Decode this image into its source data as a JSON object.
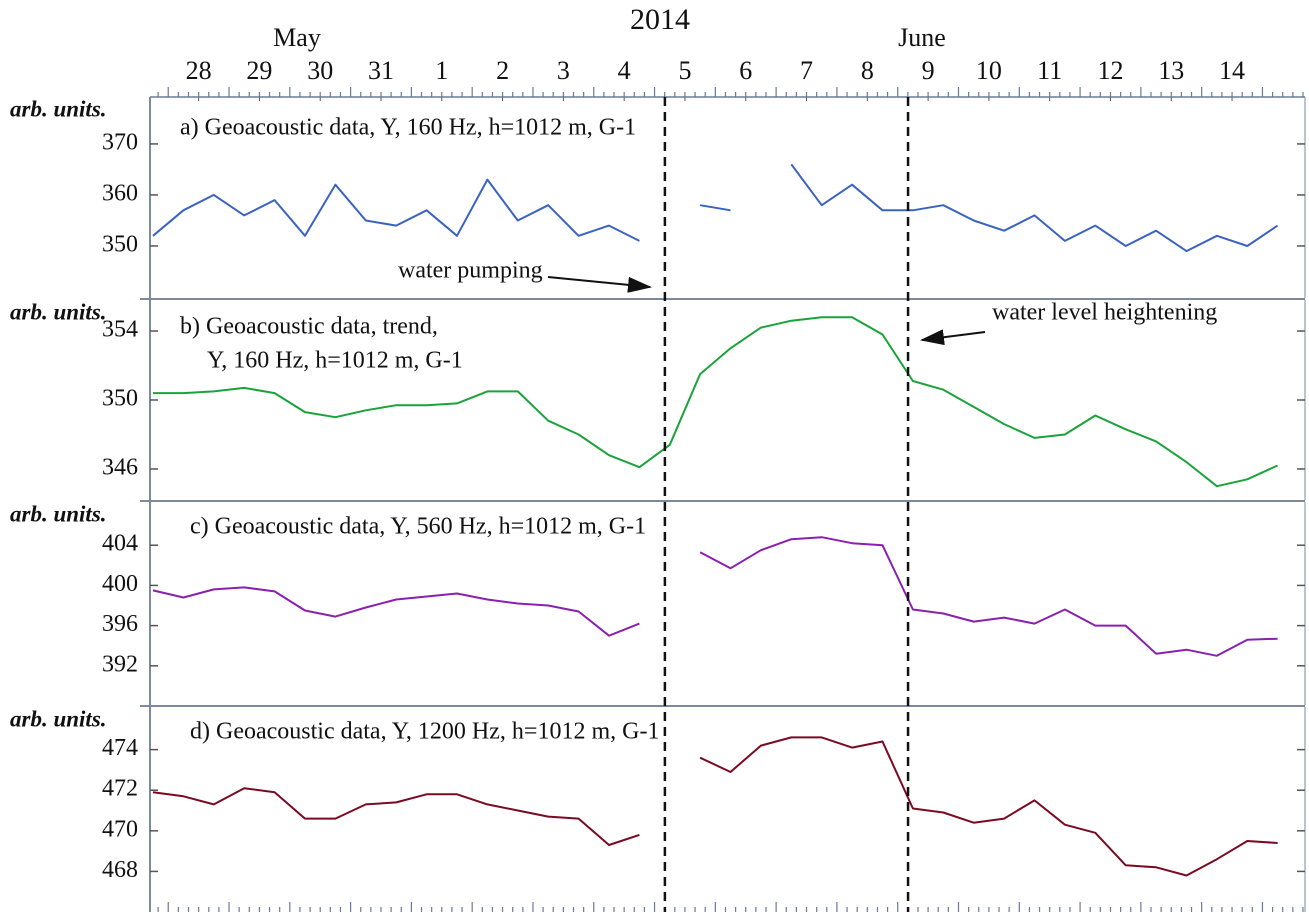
{
  "header": {
    "year": "2014",
    "months": [
      "May",
      "June"
    ]
  },
  "annotations": [
    {
      "text": "water pumping"
    },
    {
      "text": "water level heightening"
    }
  ],
  "markers": {
    "x": [
      8.17,
      12.17
    ]
  },
  "chart_data": [
    {
      "type": "line",
      "title": "a) Geoacoustic data, Y, 160 Hz, h=1012 m,  G-1",
      "ylabel": "arb. units.",
      "xlim": [
        -0.3,
        18.7
      ],
      "xticks": [
        {
          "value": 0.5,
          "label": "28"
        },
        {
          "value": 1.5,
          "label": "29"
        },
        {
          "value": 2.5,
          "label": "30"
        },
        {
          "value": 3.5,
          "label": "31"
        },
        {
          "value": 4.5,
          "label": "1"
        },
        {
          "value": 5.5,
          "label": "2"
        },
        {
          "value": 6.5,
          "label": "3"
        },
        {
          "value": 7.5,
          "label": "4"
        },
        {
          "value": 8.5,
          "label": "5"
        },
        {
          "value": 9.5,
          "label": "6"
        },
        {
          "value": 10.5,
          "label": "7"
        },
        {
          "value": 11.5,
          "label": "8"
        },
        {
          "value": 12.5,
          "label": "9"
        },
        {
          "value": 13.5,
          "label": "10"
        },
        {
          "value": 14.5,
          "label": "11"
        },
        {
          "value": 15.5,
          "label": "12"
        },
        {
          "value": 16.5,
          "label": "13"
        },
        {
          "value": 17.5,
          "label": "14"
        }
      ],
      "x": [
        -0.25,
        0.25,
        0.75,
        1.25,
        1.75,
        2.25,
        2.75,
        3.25,
        3.75,
        4.25,
        4.75,
        5.25,
        5.75,
        6.25,
        6.75,
        7.25,
        7.75,
        8.25,
        8.75,
        9.25,
        9.75,
        10.25,
        10.75,
        11.25,
        11.75,
        12.25,
        12.75,
        13.25,
        13.75,
        14.25,
        14.75,
        15.25,
        15.75,
        16.25,
        16.75,
        17.25,
        17.75,
        18.25
      ],
      "series": [
        {
          "color": "#3a62c0",
          "values": [
            352,
            357,
            360,
            356,
            359,
            352,
            362,
            355,
            354,
            357,
            352,
            363,
            355,
            358,
            352,
            354,
            351,
            null,
            358,
            357,
            null,
            366,
            358,
            362,
            357,
            357,
            358,
            355,
            353,
            356,
            351,
            354,
            350,
            353,
            349,
            352,
            350,
            354
          ]
        }
      ],
      "ylim": [
        339.8,
        379.2
      ],
      "yticks": [
        350,
        360,
        370
      ]
    },
    {
      "type": "line",
      "title": [
        "b) Geoacoustic data, trend,",
        "Y, 160 Hz, h=1012 m,  G-1"
      ],
      "ylabel": "arb. units.",
      "xlim": [
        -0.3,
        18.7
      ],
      "x": [
        -0.25,
        0.25,
        0.75,
        1.25,
        1.75,
        2.25,
        2.75,
        3.25,
        3.75,
        4.25,
        4.75,
        5.25,
        5.75,
        6.25,
        6.75,
        7.25,
        7.75,
        8.25,
        8.75,
        9.25,
        9.75,
        10.25,
        10.75,
        11.25,
        11.75,
        12.25,
        12.75,
        13.25,
        13.75,
        14.25,
        14.75,
        15.25,
        15.75,
        16.25,
        16.75,
        17.25,
        17.75,
        18.25
      ],
      "series": [
        {
          "color": "#1aa33a",
          "values": [
            350.4,
            350.4,
            350.5,
            350.7,
            350.4,
            349.3,
            349.0,
            349.4,
            349.7,
            349.7,
            349.8,
            350.5,
            350.5,
            348.8,
            348.0,
            346.8,
            346.1,
            347.4,
            351.5,
            353.0,
            354.2,
            354.6,
            354.8,
            354.8,
            353.8,
            351.1,
            350.6,
            349.6,
            348.6,
            347.8,
            348.0,
            349.1,
            348.3,
            347.6,
            346.4,
            345.0,
            345.4,
            346.2
          ]
        }
      ],
      "ylim": [
        344.2,
        355.8
      ],
      "yticks": [
        346,
        350,
        354
      ]
    },
    {
      "type": "line",
      "title": "c) Geoacoustic data, Y, 560 Hz, h=1012 m,  G-1",
      "ylabel": "arb. units.",
      "xlim": [
        -0.3,
        18.7
      ],
      "x": [
        -0.25,
        0.25,
        0.75,
        1.25,
        1.75,
        2.25,
        2.75,
        3.25,
        3.75,
        4.25,
        4.75,
        5.25,
        5.75,
        6.25,
        6.75,
        7.25,
        7.75,
        8.25,
        8.75,
        9.25,
        9.75,
        10.25,
        10.75,
        11.25,
        11.75,
        12.25,
        12.75,
        13.25,
        13.75,
        14.25,
        14.75,
        15.25,
        15.75,
        16.25,
        16.75,
        17.25,
        17.75,
        18.25
      ],
      "series": [
        {
          "color": "#8a1fb0",
          "values": [
            399.5,
            398.8,
            399.6,
            399.8,
            399.4,
            397.5,
            396.9,
            397.8,
            398.6,
            398.9,
            399.2,
            398.6,
            398.2,
            398.0,
            397.4,
            395.0,
            396.2,
            null,
            403.3,
            401.7,
            403.5,
            404.6,
            404.8,
            404.2,
            404.0,
            397.6,
            397.2,
            396.4,
            396.8,
            396.2,
            397.6,
            396.0,
            396.0,
            393.2,
            393.6,
            393.0,
            394.6,
            394.7
          ]
        }
      ],
      "ylim": [
        388.1,
        408.3
      ],
      "yticks": [
        392,
        396,
        400,
        404
      ]
    },
    {
      "type": "line",
      "title": "d) Geoacoustic data, Y, 1200 Hz, h=1012 m,  G-1",
      "ylabel": "arb. units.",
      "xlim": [
        -0.3,
        18.7
      ],
      "x": [
        -0.25,
        0.25,
        0.75,
        1.25,
        1.75,
        2.25,
        2.75,
        3.25,
        3.75,
        4.25,
        4.75,
        5.25,
        5.75,
        6.25,
        6.75,
        7.25,
        7.75,
        8.25,
        8.75,
        9.25,
        9.75,
        10.25,
        10.75,
        11.25,
        11.75,
        12.25,
        12.75,
        13.25,
        13.75,
        14.25,
        14.75,
        15.25,
        15.75,
        16.25,
        16.75,
        17.25,
        17.75,
        18.25
      ],
      "series": [
        {
          "color": "#7a0a22",
          "values": [
            471.9,
            471.7,
            471.3,
            472.1,
            471.9,
            470.6,
            470.6,
            471.3,
            471.4,
            471.8,
            471.8,
            471.3,
            471.0,
            470.7,
            470.6,
            469.3,
            469.8,
            null,
            473.6,
            472.9,
            474.2,
            474.6,
            474.6,
            474.1,
            474.4,
            471.1,
            470.9,
            470.4,
            470.6,
            471.5,
            470.3,
            469.9,
            468.3,
            468.2,
            467.8,
            468.6,
            469.5,
            469.4
          ]
        }
      ],
      "ylim": [
        466.0,
        476.1
      ],
      "yticks": [
        468,
        470,
        472,
        474
      ]
    }
  ]
}
